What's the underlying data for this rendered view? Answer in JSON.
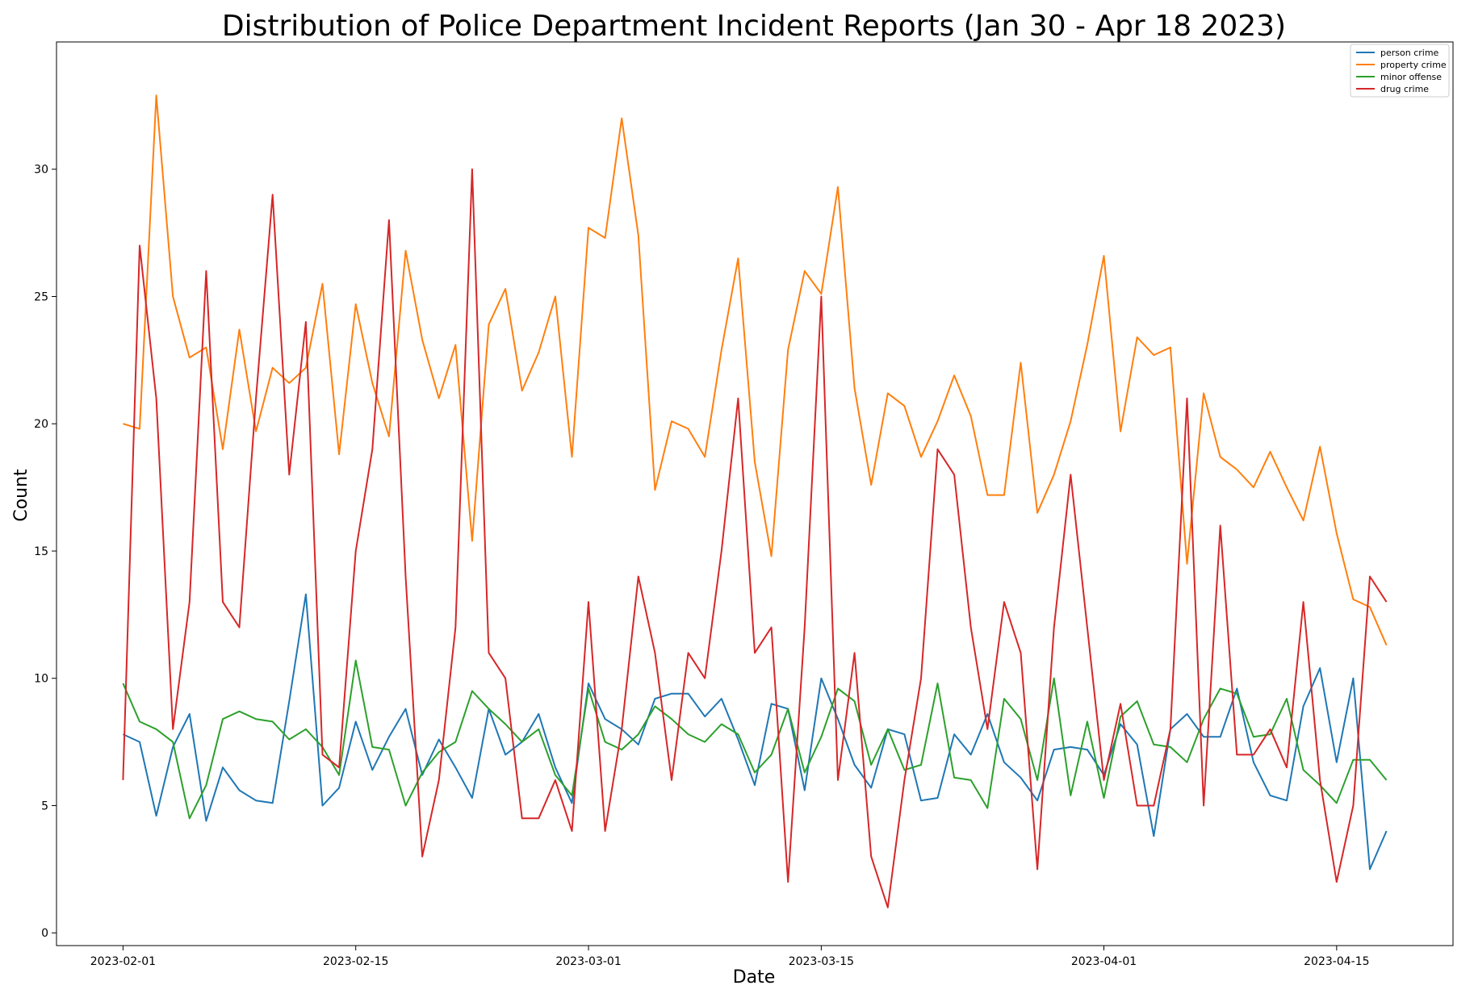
{
  "chart_data": {
    "type": "line",
    "title": "Distribution of Police Department Incident Reports (Jan 30 - Apr 18 2023)",
    "xlabel": "Date",
    "ylabel": "Count",
    "x_start": "2023-02-01",
    "x_ticks": [
      "2023-02-01",
      "2023-02-15",
      "2023-03-01",
      "2023-03-15",
      "2023-04-01",
      "2023-04-15"
    ],
    "y_ticks": [
      0,
      5,
      10,
      15,
      20,
      25,
      30
    ],
    "ylim": [
      -0.5,
      35.0
    ],
    "xlim": [
      "2023-01-28",
      "2023-04-22"
    ],
    "legend_position": "top-right",
    "series": [
      {
        "name": "person crime",
        "color": "#1f77b4",
        "values": [
          7.8,
          7.5,
          4.6,
          7.3,
          8.6,
          4.4,
          6.5,
          5.6,
          5.2,
          5.1,
          9.1,
          13.3,
          5.0,
          5.7,
          8.3,
          6.4,
          7.7,
          8.8,
          6.2,
          7.6,
          6.5,
          5.3,
          8.8,
          7.0,
          7.5,
          8.6,
          6.5,
          5.1,
          9.8,
          8.4,
          8.0,
          7.4,
          9.2,
          9.4,
          9.4,
          8.5,
          9.2,
          7.6,
          5.8,
          9.0,
          8.8,
          5.6,
          10.0,
          8.4,
          6.6,
          5.7,
          8.0,
          7.8,
          5.2,
          5.3,
          7.8,
          7.0,
          8.6,
          6.7,
          6.1,
          5.2,
          7.2,
          7.3,
          7.2,
          6.2,
          8.2,
          7.4,
          3.8,
          8.0,
          8.6,
          7.7,
          7.7,
          9.6,
          6.7,
          5.4,
          5.2,
          8.9,
          10.4,
          6.7,
          10.0,
          2.5,
          4.0
        ]
      },
      {
        "name": "property crime",
        "color": "#ff7f0e",
        "values": [
          20.0,
          19.8,
          32.9,
          25.0,
          22.6,
          23.0,
          19.0,
          23.7,
          19.7,
          22.2,
          21.6,
          22.2,
          25.5,
          18.8,
          24.7,
          21.6,
          19.5,
          26.8,
          23.3,
          21.0,
          23.1,
          15.4,
          23.9,
          25.3,
          21.3,
          22.8,
          25.0,
          18.7,
          27.7,
          27.3,
          32.0,
          27.4,
          17.4,
          20.1,
          19.8,
          18.7,
          22.9,
          26.5,
          18.5,
          14.8,
          22.9,
          26.0,
          25.1,
          29.3,
          21.4,
          17.6,
          21.2,
          20.7,
          18.7,
          20.1,
          21.9,
          20.3,
          17.2,
          17.2,
          22.4,
          16.5,
          18.0,
          20.1,
          23.1,
          26.6,
          19.7,
          23.4,
          22.7,
          23.0,
          14.5,
          21.2,
          18.7,
          18.2,
          17.5,
          18.9,
          17.5,
          16.2,
          19.1,
          15.7,
          13.1,
          12.8,
          11.3
        ]
      },
      {
        "name": "minor offense",
        "color": "#2ca02c",
        "values": [
          9.8,
          8.3,
          8.0,
          7.5,
          4.5,
          5.8,
          8.4,
          8.7,
          8.4,
          8.3,
          7.6,
          8.0,
          7.3,
          6.2,
          10.7,
          7.3,
          7.2,
          5.0,
          6.3,
          7.1,
          7.5,
          9.5,
          8.8,
          8.2,
          7.5,
          8.0,
          6.2,
          5.4,
          9.6,
          7.5,
          7.2,
          7.8,
          8.9,
          8.4,
          7.8,
          7.5,
          8.2,
          7.8,
          6.3,
          7.0,
          8.8,
          6.3,
          7.7,
          9.6,
          9.1,
          6.6,
          8.0,
          6.4,
          6.6,
          9.8,
          6.1,
          6.0,
          4.9,
          9.2,
          8.4,
          6.0,
          10.0,
          5.4,
          8.3,
          5.3,
          8.5,
          9.1,
          7.4,
          7.3,
          6.7,
          8.4,
          9.6,
          9.4,
          7.7,
          7.8,
          9.2,
          6.4,
          5.8,
          5.1,
          6.8,
          6.8,
          6.0
        ]
      },
      {
        "name": "drug crime",
        "color": "#d62728",
        "values": [
          6,
          27,
          21,
          8,
          13,
          26,
          13,
          12,
          21,
          29,
          18,
          24,
          7,
          6.5,
          15,
          19,
          28,
          14,
          3,
          6,
          12,
          30,
          11,
          10,
          4.5,
          4.5,
          6,
          4,
          13,
          4,
          8,
          14,
          11,
          6,
          11,
          10,
          15,
          21,
          11,
          12,
          2,
          12,
          25,
          6,
          11,
          3,
          1,
          6,
          10,
          19,
          18,
          12,
          8,
          13,
          11,
          2.5,
          12,
          18,
          12,
          6,
          9,
          5,
          5,
          8,
          21,
          5,
          16,
          7,
          7,
          8,
          6.5,
          13,
          6,
          2,
          5,
          14,
          13
        ]
      }
    ]
  }
}
